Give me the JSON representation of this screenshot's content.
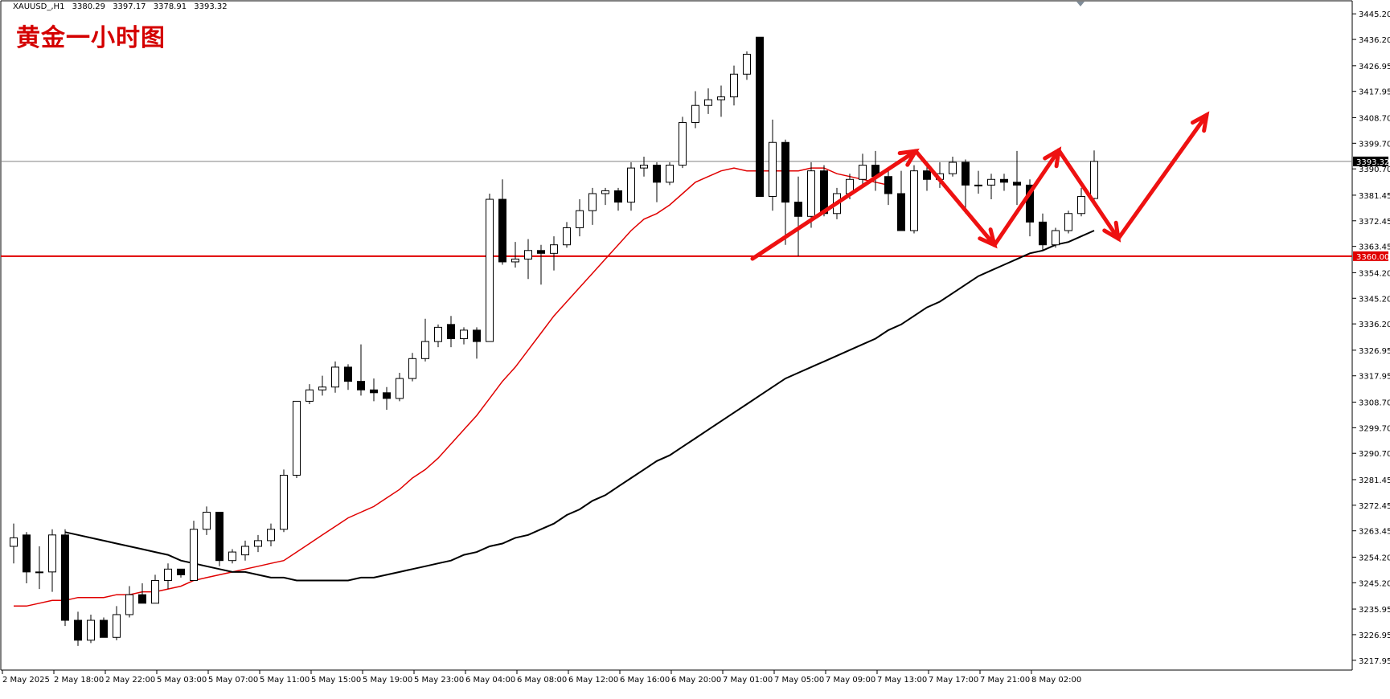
{
  "header": {
    "symbol": "XAUUSD_,H1",
    "open": "3380.29",
    "high": "3397.17",
    "low": "3378.91",
    "close": "3393.32"
  },
  "title": "黄金一小时图",
  "colors": {
    "background": "#ffffff",
    "candle_outline": "#000000",
    "bull_fill": "#ffffff",
    "bear_fill": "#000000",
    "ma_fast": "#e00000",
    "ma_slow": "#000000",
    "support_line": "#e00000",
    "price_line": "#808080",
    "arrow": "#ee1111"
  },
  "chart_data": {
    "type": "candlestick",
    "symbol": "XAUUSD_,H1",
    "ylim": [
      3214.5,
      3449.5
    ],
    "y_ticks": [
      "3445.20",
      "3436.20",
      "3426.95",
      "3417.95",
      "3408.70",
      "3399.70",
      "3390.70",
      "3381.45",
      "3372.45",
      "3363.45",
      "3354.20",
      "3345.20",
      "3336.20",
      "3326.95",
      "3317.95",
      "3308.70",
      "3299.70",
      "3290.70",
      "3281.45",
      "3272.45",
      "3263.45",
      "3254.20",
      "3245.20",
      "3235.95",
      "3226.95",
      "3217.95"
    ],
    "x_labels": [
      "2 May 2025",
      "2 May 18:00",
      "2 May 22:00",
      "5 May 03:00",
      "5 May 07:00",
      "5 May 11:00",
      "5 May 15:00",
      "5 May 19:00",
      "5 May 23:00",
      "6 May 04:00",
      "6 May 08:00",
      "6 May 12:00",
      "6 May 16:00",
      "6 May 20:00",
      "7 May 01:00",
      "7 May 05:00",
      "7 May 09:00",
      "7 May 13:00",
      "7 May 17:00",
      "7 May 21:00",
      "8 May 02:00"
    ],
    "current_price": "3393.32",
    "support_level": "3360.00",
    "candles": [
      {
        "o": 3258,
        "h": 3266,
        "l": 3252,
        "c": 3261
      },
      {
        "o": 3262,
        "h": 3263,
        "l": 3245,
        "c": 3249
      },
      {
        "o": 3249,
        "h": 3258,
        "l": 3243,
        "c": 3249
      },
      {
        "o": 3249,
        "h": 3264,
        "l": 3242,
        "c": 3262
      },
      {
        "o": 3262,
        "h": 3264,
        "l": 3230,
        "c": 3232
      },
      {
        "o": 3232,
        "h": 3235,
        "l": 3223,
        "c": 3225
      },
      {
        "o": 3225,
        "h": 3234,
        "l": 3224,
        "c": 3232
      },
      {
        "o": 3232,
        "h": 3233,
        "l": 3226,
        "c": 3226
      },
      {
        "o": 3226,
        "h": 3237,
        "l": 3225,
        "c": 3234
      },
      {
        "o": 3234,
        "h": 3244,
        "l": 3233,
        "c": 3241
      },
      {
        "o": 3241,
        "h": 3245,
        "l": 3239,
        "c": 3238
      },
      {
        "o": 3238,
        "h": 3248,
        "l": 3239,
        "c": 3246
      },
      {
        "o": 3246,
        "h": 3252,
        "l": 3243,
        "c": 3250
      },
      {
        "o": 3250,
        "h": 3250,
        "l": 3247,
        "c": 3248
      },
      {
        "o": 3246,
        "h": 3267,
        "l": 3246,
        "c": 3264
      },
      {
        "o": 3264,
        "h": 3272,
        "l": 3262,
        "c": 3270
      },
      {
        "o": 3270,
        "h": 3270,
        "l": 3251,
        "c": 3253
      },
      {
        "o": 3253,
        "h": 3257,
        "l": 3252,
        "c": 3256
      },
      {
        "o": 3255,
        "h": 3260,
        "l": 3253,
        "c": 3258
      },
      {
        "o": 3258,
        "h": 3262,
        "l": 3256,
        "c": 3260
      },
      {
        "o": 3260,
        "h": 3266,
        "l": 3258,
        "c": 3264
      },
      {
        "o": 3264,
        "h": 3285,
        "l": 3263,
        "c": 3283
      },
      {
        "o": 3283,
        "h": 3309,
        "l": 3282,
        "c": 3309
      },
      {
        "o": 3309,
        "h": 3315,
        "l": 3308,
        "c": 3313
      },
      {
        "o": 3313,
        "h": 3318,
        "l": 3311,
        "c": 3314
      },
      {
        "o": 3314,
        "h": 3323,
        "l": 3312,
        "c": 3321
      },
      {
        "o": 3321,
        "h": 3322,
        "l": 3313,
        "c": 3316
      },
      {
        "o": 3316,
        "h": 3329,
        "l": 3311,
        "c": 3313
      },
      {
        "o": 3313,
        "h": 3317,
        "l": 3309,
        "c": 3312
      },
      {
        "o": 3312,
        "h": 3314,
        "l": 3306,
        "c": 3310
      },
      {
        "o": 3310,
        "h": 3319,
        "l": 3309,
        "c": 3317
      },
      {
        "o": 3317,
        "h": 3326,
        "l": 3316,
        "c": 3324
      },
      {
        "o": 3324,
        "h": 3338,
        "l": 3323,
        "c": 3330
      },
      {
        "o": 3330,
        "h": 3336,
        "l": 3328,
        "c": 3335
      },
      {
        "o": 3336,
        "h": 3339,
        "l": 3328,
        "c": 3331
      },
      {
        "o": 3331,
        "h": 3335,
        "l": 3329,
        "c": 3334
      },
      {
        "o": 3334,
        "h": 3335,
        "l": 3324,
        "c": 3330
      },
      {
        "o": 3330,
        "h": 3382,
        "l": 3330,
        "c": 3380
      },
      {
        "o": 3380,
        "h": 3387,
        "l": 3357,
        "c": 3358
      },
      {
        "o": 3358,
        "h": 3365,
        "l": 3356,
        "c": 3359
      },
      {
        "o": 3359,
        "h": 3366,
        "l": 3352,
        "c": 3362
      },
      {
        "o": 3362,
        "h": 3364,
        "l": 3350,
        "c": 3361
      },
      {
        "o": 3361,
        "h": 3367,
        "l": 3355,
        "c": 3364
      },
      {
        "o": 3364,
        "h": 3372,
        "l": 3363,
        "c": 3370
      },
      {
        "o": 3370,
        "h": 3380,
        "l": 3367,
        "c": 3376
      },
      {
        "o": 3376,
        "h": 3384,
        "l": 3371,
        "c": 3382
      },
      {
        "o": 3382,
        "h": 3384,
        "l": 3378,
        "c": 3383
      },
      {
        "o": 3383,
        "h": 3384,
        "l": 3376,
        "c": 3379
      },
      {
        "o": 3379,
        "h": 3393,
        "l": 3376,
        "c": 3391
      },
      {
        "o": 3391,
        "h": 3395,
        "l": 3388,
        "c": 3392
      },
      {
        "o": 3392,
        "h": 3393,
        "l": 3379,
        "c": 3386
      },
      {
        "o": 3386,
        "h": 3393,
        "l": 3385,
        "c": 3392
      },
      {
        "o": 3392,
        "h": 3409,
        "l": 3391,
        "c": 3407
      },
      {
        "o": 3407,
        "h": 3418,
        "l": 3405,
        "c": 3413
      },
      {
        "o": 3413,
        "h": 3419,
        "l": 3410,
        "c": 3415
      },
      {
        "o": 3415,
        "h": 3420,
        "l": 3409,
        "c": 3416
      },
      {
        "o": 3416,
        "h": 3427,
        "l": 3413,
        "c": 3424
      },
      {
        "o": 3424,
        "h": 3432,
        "l": 3422,
        "c": 3431
      },
      {
        "o": 3437,
        "h": 3437,
        "l": 3381,
        "c": 3381
      },
      {
        "o": 3381,
        "h": 3408,
        "l": 3376,
        "c": 3400
      },
      {
        "o": 3400,
        "h": 3401,
        "l": 3364,
        "c": 3379
      },
      {
        "o": 3379,
        "h": 3388,
        "l": 3360,
        "c": 3374
      },
      {
        "o": 3374,
        "h": 3393,
        "l": 3370,
        "c": 3390
      },
      {
        "o": 3390,
        "h": 3392,
        "l": 3374,
        "c": 3375
      },
      {
        "o": 3375,
        "h": 3384,
        "l": 3373,
        "c": 3382
      },
      {
        "o": 3382,
        "h": 3389,
        "l": 3380,
        "c": 3387
      },
      {
        "o": 3387,
        "h": 3396,
        "l": 3385,
        "c": 3392
      },
      {
        "o": 3392,
        "h": 3397,
        "l": 3383,
        "c": 3388
      },
      {
        "o": 3388,
        "h": 3391,
        "l": 3378,
        "c": 3382
      },
      {
        "o": 3382,
        "h": 3390,
        "l": 3369,
        "c": 3369
      },
      {
        "o": 3369,
        "h": 3392,
        "l": 3368,
        "c": 3390
      },
      {
        "o": 3390,
        "h": 3392,
        "l": 3383,
        "c": 3387
      },
      {
        "o": 3387,
        "h": 3393,
        "l": 3384,
        "c": 3389
      },
      {
        "o": 3389,
        "h": 3395,
        "l": 3388,
        "c": 3393
      },
      {
        "o": 3393,
        "h": 3394,
        "l": 3375,
        "c": 3385
      },
      {
        "o": 3385,
        "h": 3390,
        "l": 3382,
        "c": 3385
      },
      {
        "o": 3385,
        "h": 3389,
        "l": 3380,
        "c": 3387
      },
      {
        "o": 3387,
        "h": 3389,
        "l": 3383,
        "c": 3386
      },
      {
        "o": 3386,
        "h": 3397,
        "l": 3378,
        "c": 3385
      },
      {
        "o": 3385,
        "h": 3387,
        "l": 3367,
        "c": 3372
      },
      {
        "o": 3372,
        "h": 3375,
        "l": 3362,
        "c": 3364
      },
      {
        "o": 3364,
        "h": 3370,
        "l": 3363,
        "c": 3369
      },
      {
        "o": 3369,
        "h": 3376,
        "l": 3368,
        "c": 3375
      },
      {
        "o": 3375,
        "h": 3384,
        "l": 3374,
        "c": 3381
      },
      {
        "o": 3380.29,
        "h": 3397.17,
        "l": 3378.91,
        "c": 3393.32
      }
    ],
    "ma_fast": [
      3237,
      3237,
      3238,
      3239,
      3239,
      3240,
      3240,
      3240,
      3241,
      3241,
      3242,
      3242,
      3243,
      3244,
      3246,
      3247,
      3248,
      3249,
      3250,
      3251,
      3252,
      3253,
      3256,
      3259,
      3262,
      3265,
      3268,
      3270,
      3272,
      3275,
      3278,
      3282,
      3285,
      3289,
      3294,
      3299,
      3304,
      3310,
      3316,
      3321,
      3327,
      3333,
      3339,
      3344,
      3349,
      3354,
      3359,
      3364,
      3369,
      3373,
      3375,
      3378,
      3382,
      3386,
      3388,
      3390,
      3391,
      3390,
      3390,
      3390,
      3390,
      3390,
      3391,
      3391,
      3389,
      3388,
      3387,
      3386,
      3385
    ],
    "ma_slow": [
      3263,
      3262,
      3261,
      3260,
      3259,
      3258,
      3257,
      3256,
      3255,
      3253,
      3252,
      3251,
      3250,
      3249,
      3249,
      3248,
      3247,
      3247,
      3246,
      3246,
      3246,
      3246,
      3246,
      3247,
      3247,
      3248,
      3249,
      3250,
      3251,
      3252,
      3253,
      3255,
      3256,
      3258,
      3259,
      3261,
      3262,
      3264,
      3266,
      3269,
      3271,
      3274,
      3276,
      3279,
      3282,
      3285,
      3288,
      3290,
      3293,
      3296,
      3299,
      3302,
      3305,
      3308,
      3311,
      3314,
      3317,
      3319,
      3321,
      3323,
      3325,
      3327,
      3329,
      3331,
      3334,
      3336,
      3339,
      3342,
      3344,
      3347,
      3350,
      3353,
      3355,
      3357,
      3359,
      3361,
      3362,
      3364,
      3365,
      3367,
      3369
    ],
    "ma_slow_start": 4
  }
}
